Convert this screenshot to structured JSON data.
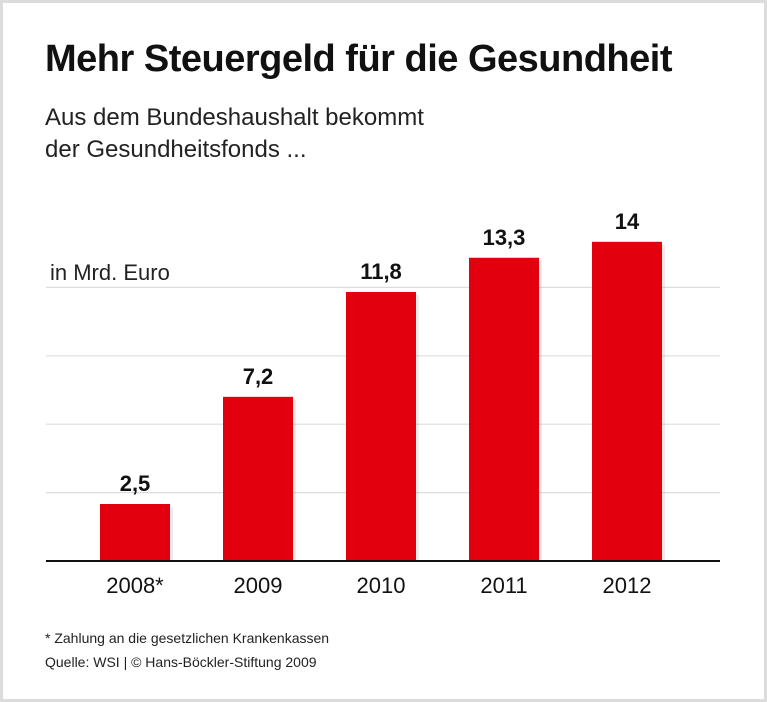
{
  "title": "Mehr Steuergeld für die Gesundheit",
  "subtitle_line1": "Aus dem Bundeshaushalt bekommt",
  "subtitle_line2": "der Gesundheitsfonds ...",
  "footnote": "* Zahlung an die gesetzlichen Krankenkassen",
  "source": "Quelle: WSI | © Hans-Böckler-Stiftung 2009",
  "chart_data": {
    "type": "bar",
    "title": "Mehr Steuergeld für die Gesundheit",
    "ylabel": "in Mrd. Euro",
    "categories": [
      "2008*",
      "2009",
      "2010",
      "2011",
      "2012"
    ],
    "values": [
      2.5,
      7.2,
      11.8,
      13.3,
      14
    ],
    "data_labels": [
      "2,5",
      "7,2",
      "11,8",
      "13,3",
      "14"
    ],
    "ylim": [
      0,
      15
    ],
    "gridlines": [
      3,
      6,
      9,
      12
    ],
    "grid": true,
    "bar_color": "#e2000f"
  }
}
